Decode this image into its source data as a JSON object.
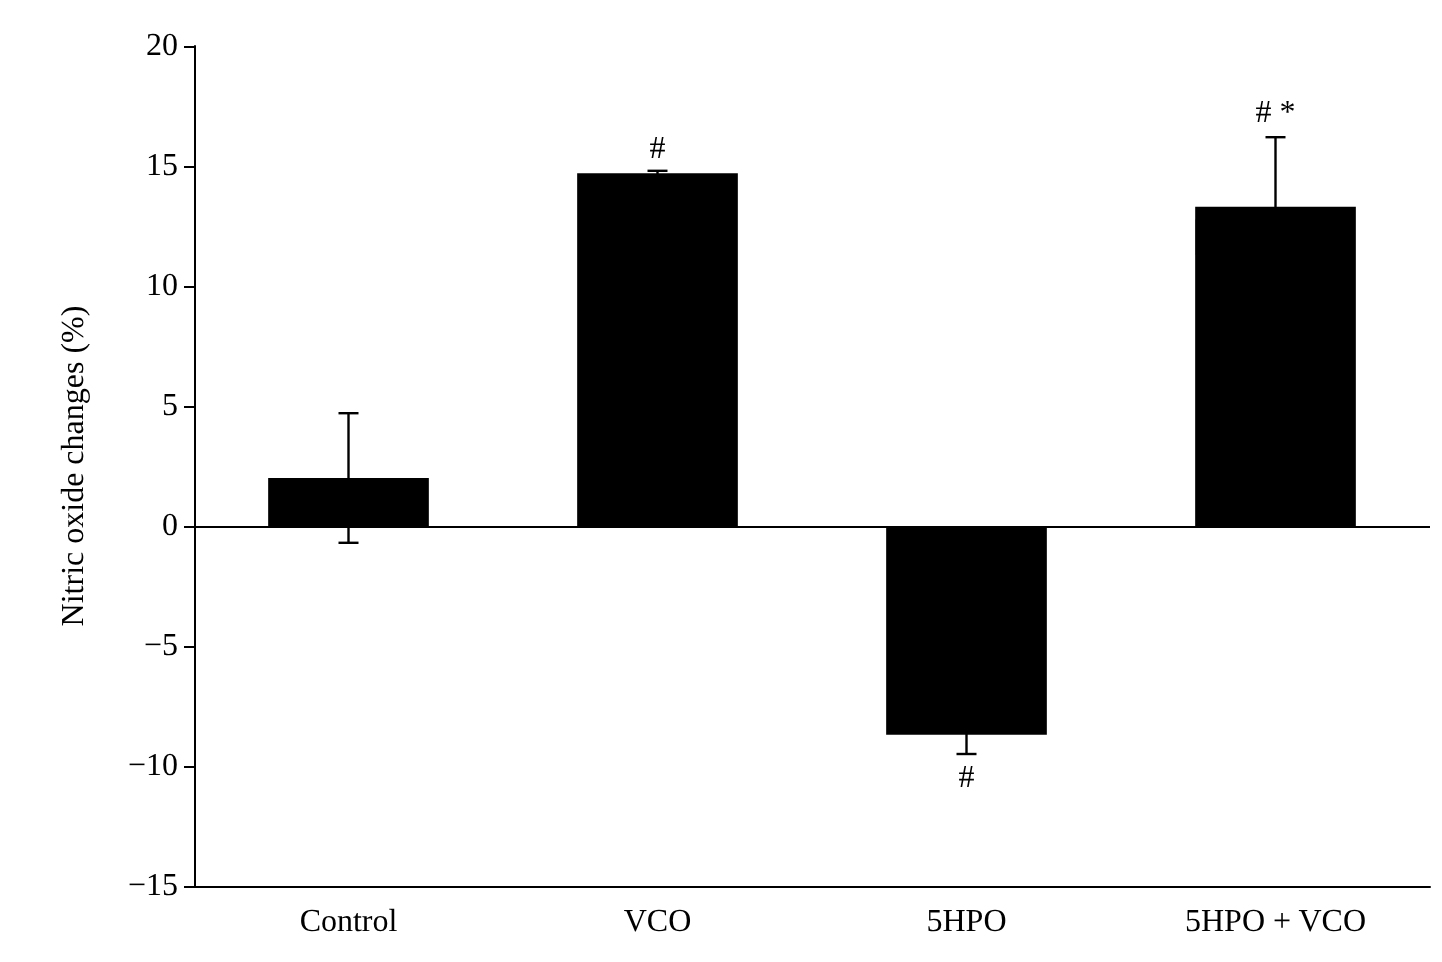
{
  "chart_data": {
    "type": "bar",
    "ylabel": "Nitric oxide changes (%)",
    "categories": [
      "Control",
      "VCO",
      "5HPO",
      "5HPO + VCO"
    ],
    "values": [
      2.0,
      14.7,
      -8.7,
      13.3
    ],
    "errors": [
      2.7,
      0.1,
      0.8,
      2.9
    ],
    "color": "#000000",
    "ylim": [
      -15,
      20
    ],
    "yticks": [
      -15,
      -10,
      -5,
      0,
      5,
      10,
      15,
      20
    ],
    "ref_lines": [
      {
        "axis": "y",
        "value": 0
      }
    ],
    "annotations": [
      {
        "text": "#",
        "x": "VCO",
        "y": 14.7
      },
      {
        "text": "#",
        "x": "5HPO",
        "y": -9.5
      },
      {
        "text": "# *",
        "x": "5HPO + VCO",
        "y": 16.2
      }
    ],
    "grid": false
  }
}
